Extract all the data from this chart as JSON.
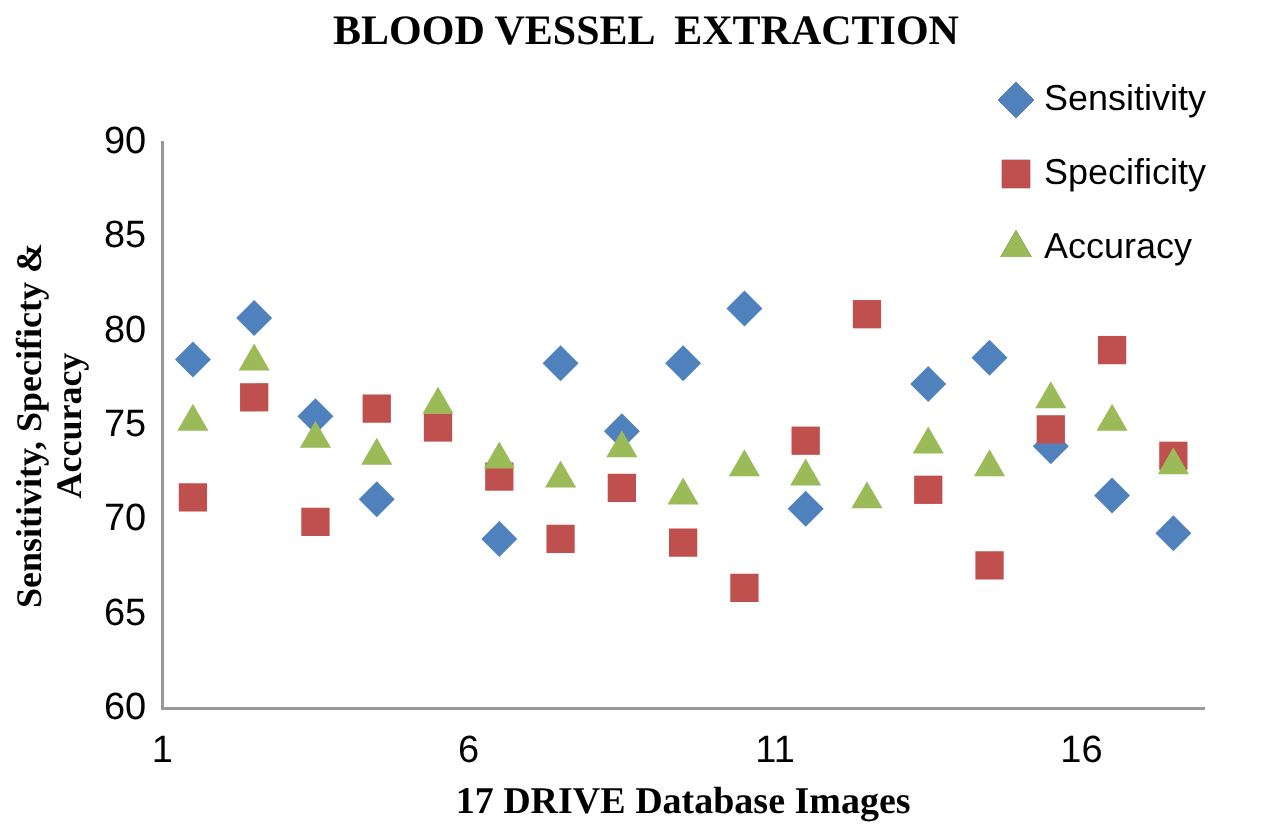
{
  "chart_data": {
    "type": "scatter",
    "title": "BLOOD VESSEL  EXTRACTION",
    "xlabel": "17 DRIVE Database Images",
    "ylabel": "Sensitivity, Specificty & Accuracy",
    "x": [
      1.5,
      2.5,
      3.5,
      4.5,
      5.5,
      6.5,
      7.5,
      8.5,
      9.5,
      10.5,
      11.5,
      12.5,
      13.5,
      14.5,
      15.5,
      16.5,
      17.5
    ],
    "xlim": [
      1,
      18
    ],
    "xticks": [
      1,
      6,
      11,
      16
    ],
    "ylim": [
      60,
      90
    ],
    "yticks": [
      60,
      65,
      70,
      75,
      80,
      85,
      90
    ],
    "grid": false,
    "legend": "top right",
    "series": [
      {
        "name": "Sensitivity",
        "color": "#4f81bd",
        "marker": "diamond",
        "values": [
          78.5,
          80.7,
          75.5,
          71.1,
          null,
          69.0,
          78.3,
          74.7,
          78.3,
          81.2,
          70.6,
          null,
          77.2,
          78.6,
          73.9,
          71.3,
          69.3
        ]
      },
      {
        "name": "Specificity",
        "color": "#c0504d",
        "marker": "square",
        "values": [
          71.2,
          76.5,
          69.9,
          75.9,
          74.9,
          72.3,
          69.0,
          71.7,
          68.8,
          66.4,
          74.2,
          80.9,
          71.6,
          67.6,
          74.8,
          79.0,
          73.4
        ]
      },
      {
        "name": "Accuracy",
        "color": "#9bbb59",
        "marker": "triangle",
        "values": [
          75.2,
          78.4,
          74.3,
          73.4,
          76.1,
          73.2,
          72.2,
          73.8,
          71.3,
          72.8,
          72.3,
          71.1,
          74.0,
          72.8,
          76.4,
          75.2,
          72.9
        ]
      }
    ]
  }
}
